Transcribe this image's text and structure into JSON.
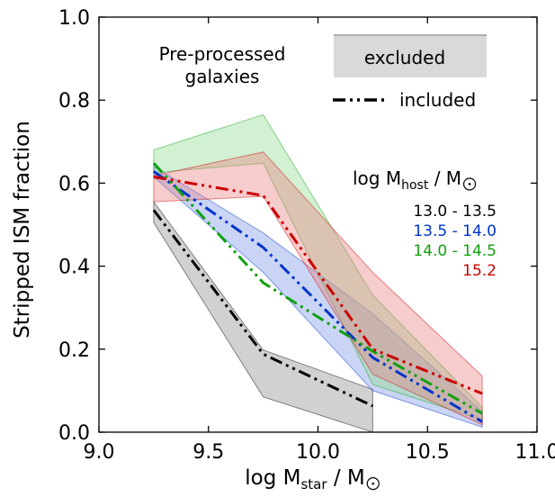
{
  "chart_data": {
    "type": "line",
    "xlabel_main": "log M",
    "xlabel_sub": "star",
    "xlabel_tail": " / M",
    "ylabel": "Stripped ISM fraction",
    "xlim": [
      9.0,
      11.0
    ],
    "ylim": [
      0.0,
      1.0
    ],
    "x_ticks": [
      "9.0",
      "9.5",
      "10.0",
      "10.5",
      "11.0"
    ],
    "y_ticks": [
      "0.0",
      "0.2",
      "0.4",
      "0.6",
      "0.8",
      "1.0"
    ],
    "grid": false,
    "annotation": [
      "Pre-processed",
      "galaxies"
    ],
    "legend": {
      "excluded_label": "excluded",
      "included_label": "included",
      "host_title_main": "log M",
      "host_title_sub": "host",
      "host_title_tail": " / M"
    },
    "series": [
      {
        "name": "13.0 - 13.5",
        "color": "#000000",
        "fill": "#8c8c8c",
        "x": [
          9.25,
          9.75,
          10.25
        ],
        "included": [
          0.535,
          0.188,
          0.063
        ],
        "band_upper": [
          0.555,
          0.198,
          0.103
        ],
        "band_lower": [
          0.505,
          0.085,
          0.0
        ]
      },
      {
        "name": "13.5 - 14.0",
        "color": "#0033cc",
        "fill": "#7b96e6",
        "x": [
          9.25,
          9.75,
          10.25,
          10.75
        ],
        "included": [
          0.628,
          0.445,
          0.18,
          0.025
        ],
        "band_upper": [
          0.64,
          0.48,
          0.285,
          0.05
        ],
        "band_lower": [
          0.615,
          0.385,
          0.1,
          0.012
        ]
      },
      {
        "name": "14.0 - 14.5",
        "color": "#11a011",
        "fill": "#8fd98f",
        "x": [
          9.25,
          9.75,
          10.25,
          10.75
        ],
        "included": [
          0.648,
          0.36,
          0.195,
          0.045
        ],
        "band_upper": [
          0.68,
          0.765,
          0.33,
          0.06
        ],
        "band_lower": [
          0.625,
          0.648,
          0.115,
          0.03
        ]
      },
      {
        "name": "15.2",
        "color": "#cc0000",
        "fill": "#e88080",
        "x": [
          9.25,
          9.75,
          10.25,
          10.75
        ],
        "included": [
          0.615,
          0.57,
          0.2,
          0.093
        ],
        "band_upper": [
          0.618,
          0.675,
          0.385,
          0.135
        ],
        "band_lower": [
          0.555,
          0.568,
          0.14,
          0.018
        ]
      }
    ]
  }
}
